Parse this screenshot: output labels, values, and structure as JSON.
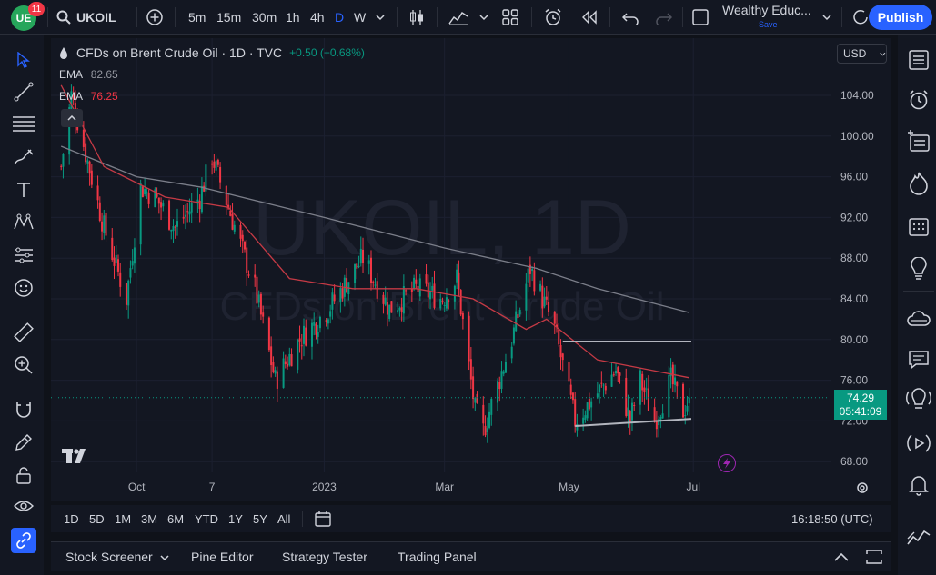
{
  "header": {
    "notifications": "11",
    "symbol": "UKOIL",
    "timeframes": [
      "5m",
      "15m",
      "30m",
      "1h",
      "4h",
      "D",
      "W"
    ],
    "active_timeframe": "D",
    "layout_name": "Wealthy Educ...",
    "layout_status": "Save",
    "publish_label": "Publish"
  },
  "chart": {
    "title": "CFDs on Brent Crude Oil · 1D · TVC",
    "change": "+0.50 (+0.68%)",
    "currency": "USD",
    "indicators": [
      {
        "name": "EMA",
        "value": "82.65",
        "color": "#9598a1"
      },
      {
        "name": "EMA",
        "value": "76.25",
        "color": "#f23645"
      }
    ],
    "watermark_symbol": "UKOIL, 1D",
    "watermark_desc": "CFDs on Brent Crude Oil",
    "current_price": "74.29",
    "countdown": "05:41:09",
    "price_labels": [
      "104.00",
      "100.00",
      "96.00",
      "92.00",
      "88.00",
      "84.00",
      "80.00",
      "76.00",
      "72.00",
      "68.00"
    ],
    "time_labels": [
      "Oct",
      "7",
      "2023",
      "Mar",
      "May",
      "Jul"
    ],
    "up_color": "#089981",
    "down_color": "#f23645"
  },
  "chart_data": {
    "type": "candlestick",
    "title": "CFDs on Brent Crude Oil · 1D · TVC",
    "xlabel": "",
    "ylabel": "",
    "ylim": [
      66,
      107
    ],
    "y_ticks": [
      104,
      100,
      96,
      92,
      88,
      84,
      80,
      76,
      72,
      68
    ],
    "x_ticks": [
      "Oct",
      "7",
      "2023",
      "Mar",
      "May",
      "Jul"
    ],
    "close_anchors": [
      {
        "t": "2022-08-25",
        "close": 97
      },
      {
        "t": "2022-08-30",
        "close": 104
      },
      {
        "t": "2022-09-15",
        "close": 91
      },
      {
        "t": "2022-09-26",
        "close": 84
      },
      {
        "t": "2022-10-03",
        "close": 95
      },
      {
        "t": "2022-10-10",
        "close": 94
      },
      {
        "t": "2022-10-20",
        "close": 91
      },
      {
        "t": "2022-11-01",
        "close": 94
      },
      {
        "t": "2022-11-07",
        "close": 98
      },
      {
        "t": "2022-11-15",
        "close": 93
      },
      {
        "t": "2022-11-28",
        "close": 85
      },
      {
        "t": "2022-12-08",
        "close": 76
      },
      {
        "t": "2022-12-20",
        "close": 80
      },
      {
        "t": "2023-01-03",
        "close": 83
      },
      {
        "t": "2023-01-20",
        "close": 88
      },
      {
        "t": "2023-02-02",
        "close": 83
      },
      {
        "t": "2023-02-15",
        "close": 85
      },
      {
        "t": "2023-02-28",
        "close": 84
      },
      {
        "t": "2023-03-07",
        "close": 86
      },
      {
        "t": "2023-03-16",
        "close": 73
      },
      {
        "t": "2023-03-20",
        "close": 71
      },
      {
        "t": "2023-04-03",
        "close": 80
      },
      {
        "t": "2023-04-12",
        "close": 87
      },
      {
        "t": "2023-04-24",
        "close": 81
      },
      {
        "t": "2023-05-04",
        "close": 72
      },
      {
        "t": "2023-05-12",
        "close": 74
      },
      {
        "t": "2023-05-24",
        "close": 77
      },
      {
        "t": "2023-05-31",
        "close": 72
      },
      {
        "t": "2023-06-05",
        "close": 76
      },
      {
        "t": "2023-06-12",
        "close": 72
      },
      {
        "t": "2023-06-20",
        "close": 76
      },
      {
        "t": "2023-06-26",
        "close": 73
      },
      {
        "t": "2023-06-29",
        "close": 74.29
      }
    ],
    "ema_long": [
      {
        "t": "2022-08-25",
        "v": 99
      },
      {
        "t": "2022-10-01",
        "v": 96
      },
      {
        "t": "2022-11-01",
        "v": 95
      },
      {
        "t": "2023-01-01",
        "v": 92
      },
      {
        "t": "2023-03-01",
        "v": 89
      },
      {
        "t": "2023-04-15",
        "v": 87
      },
      {
        "t": "2023-05-15",
        "v": 85
      },
      {
        "t": "2023-06-29",
        "v": 82.65
      }
    ],
    "ema_short": [
      {
        "t": "2022-08-25",
        "v": 105
      },
      {
        "t": "2022-09-15",
        "v": 97
      },
      {
        "t": "2022-10-15",
        "v": 94
      },
      {
        "t": "2022-11-15",
        "v": 93
      },
      {
        "t": "2022-12-15",
        "v": 86
      },
      {
        "t": "2023-01-15",
        "v": 85
      },
      {
        "t": "2023-02-15",
        "v": 85
      },
      {
        "t": "2023-03-15",
        "v": 84
      },
      {
        "t": "2023-04-10",
        "v": 81
      },
      {
        "t": "2023-04-20",
        "v": 82
      },
      {
        "t": "2023-05-15",
        "v": 78
      },
      {
        "t": "2023-06-10",
        "v": 77
      },
      {
        "t": "2023-06-29",
        "v": 76.25
      }
    ],
    "drawings": [
      {
        "from": {
          "t": "2023-04-28",
          "v": 79.8
        },
        "to": {
          "t": "2023-06-30",
          "v": 79.8
        }
      },
      {
        "from": {
          "t": "2023-05-04",
          "v": 71.5
        },
        "to": {
          "t": "2023-06-30",
          "v": 72.2
        }
      }
    ],
    "current_price": 74.29
  },
  "bottom_toolbar": {
    "ranges": [
      "1D",
      "5D",
      "1M",
      "3M",
      "6M",
      "YTD",
      "1Y",
      "5Y",
      "All"
    ],
    "clock": "16:18:50 (UTC)"
  },
  "bottom_panel": {
    "tabs": [
      "Stock Screener",
      "Pine Editor",
      "Strategy Tester",
      "Trading Panel"
    ]
  }
}
